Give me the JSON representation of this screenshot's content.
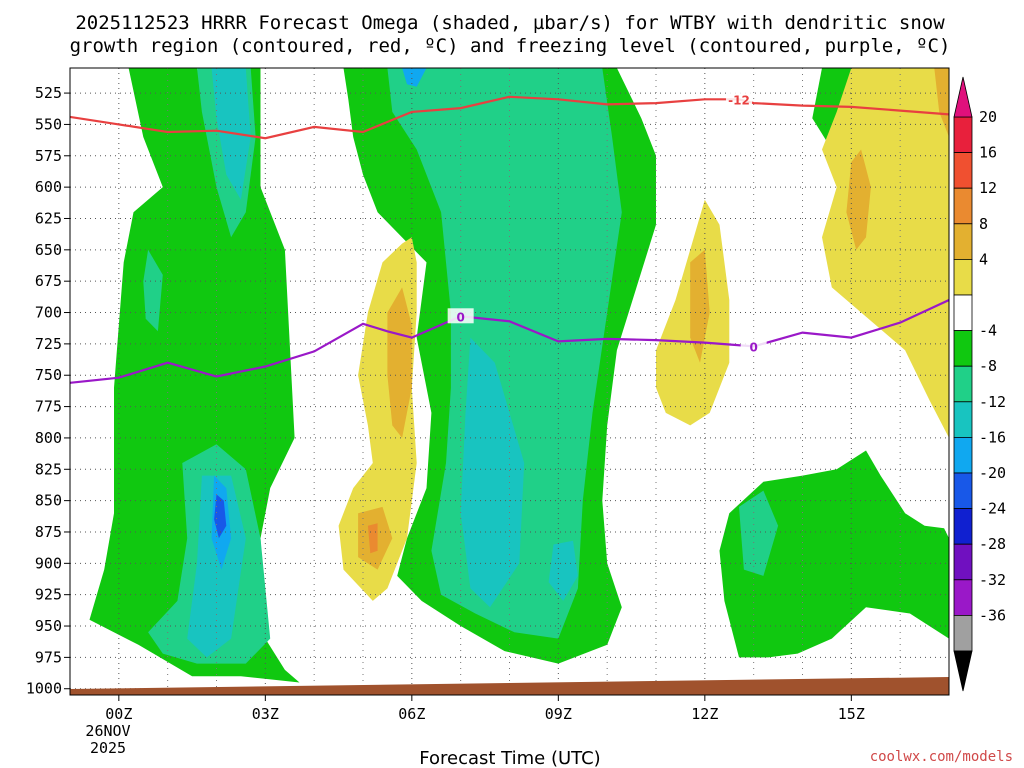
{
  "chart_data": {
    "type": "heatmap",
    "title_line1": "2025112523 HRRR Forecast Omega (shaded, µbar/s) for WTBY with dendritic snow",
    "title_line2": "growth region (contoured, red, ºC) and freezing level (contoured, purple, ºC)",
    "xlabel": "Forecast Time (UTC)",
    "credit": "coolwx.com/models",
    "x_tick_labels": [
      "00Z",
      "03Z",
      "06Z",
      "09Z",
      "12Z",
      "15Z"
    ],
    "x_tick_hours": [
      0,
      3,
      6,
      9,
      12,
      15
    ],
    "x_range_hours": [
      -1,
      17
    ],
    "date_label_line1": "26NOV",
    "date_label_line2": "2025",
    "y_tick_labels": [
      "525",
      "550",
      "575",
      "600",
      "625",
      "650",
      "675",
      "700",
      "725",
      "750",
      "775",
      "800",
      "825",
      "850",
      "875",
      "900",
      "925",
      "950",
      "975",
      "1000"
    ],
    "y_range_hPa": [
      505,
      1005
    ],
    "colorbar": {
      "labels": [
        "20",
        "16",
        "12",
        "8",
        "4",
        "-4",
        "-8",
        "-12",
        "-16",
        "-20",
        "-24",
        "-28",
        "-32",
        "-36"
      ],
      "colors": [
        "#e8203c",
        "#f05030",
        "#ea8a30",
        "#e3b030",
        "#e8dc48",
        "#ffffff",
        "#10c810",
        "#20d088",
        "#18c4c0",
        "#10a8f0",
        "#1858e8",
        "#1020d0",
        "#7010c0",
        "#9a18c8",
        "#a0a0a0"
      ],
      "top_arrow_color": "#e0107c",
      "bottom_arrow_color": "#000000"
    },
    "series": [
      {
        "name": "Dendritic snow growth region (-12 ºC)",
        "label": "-12",
        "color": "#e84040",
        "x_hours": [
          -1,
          0,
          1,
          2,
          3,
          4,
          5,
          6,
          7,
          8,
          9,
          10,
          11,
          12,
          12.7,
          13,
          14,
          15,
          16,
          17
        ],
        "pressure_hPa": [
          544,
          550,
          556,
          555,
          561,
          552,
          556,
          540,
          537,
          528,
          530,
          534,
          533,
          530,
          530,
          533,
          535,
          536,
          539,
          542
        ]
      },
      {
        "name": "Freezing level (0 ºC)",
        "label": "0",
        "color": "#9a18c8",
        "x_hours": [
          -1,
          0,
          1,
          2,
          3,
          4,
          5,
          5.5,
          6,
          7,
          8,
          9,
          10,
          11,
          12,
          13,
          14,
          15,
          16,
          17
        ],
        "pressure_hPa": [
          756,
          752,
          740,
          751,
          743,
          731,
          709,
          715,
          720,
          703,
          707,
          723,
          721,
          722,
          724,
          727,
          716,
          720,
          708,
          690
        ]
      }
    ],
    "omega_regions": [
      {
        "color": "#10c810",
        "desc": "-4 to -8 band, column 00Z-03Z, 500-990 hPa",
        "points": [
          [
            0.2,
            505
          ],
          [
            1.6,
            505
          ],
          [
            1.8,
            540
          ],
          [
            2.4,
            560
          ],
          [
            2.7,
            505
          ],
          [
            2.9,
            505
          ],
          [
            2.9,
            600
          ],
          [
            3.4,
            650
          ],
          [
            3.6,
            800
          ],
          [
            3.1,
            840
          ],
          [
            2.9,
            880
          ],
          [
            3.0,
            960
          ],
          [
            3.4,
            985
          ],
          [
            3.7,
            995
          ],
          [
            2.5,
            990
          ],
          [
            1.5,
            990
          ],
          [
            0.4,
            965
          ],
          [
            -0.6,
            945
          ],
          [
            -0.3,
            905
          ],
          [
            -0.1,
            860
          ],
          [
            -0.1,
            820
          ],
          [
            -0.1,
            760
          ],
          [
            0.1,
            660
          ],
          [
            0.3,
            620
          ],
          [
            0.9,
            600
          ],
          [
            0.5,
            560
          ]
        ]
      },
      {
        "color": "#10c810",
        "desc": "-4 to -8 band, column 04Z-11Z",
        "points": [
          [
            4.6,
            505
          ],
          [
            10.2,
            505
          ],
          [
            10.7,
            545
          ],
          [
            11.0,
            575
          ],
          [
            11.0,
            630
          ],
          [
            10.6,
            680
          ],
          [
            10.2,
            730
          ],
          [
            10.0,
            790
          ],
          [
            9.9,
            850
          ],
          [
            10.0,
            900
          ],
          [
            10.3,
            935
          ],
          [
            10.0,
            965
          ],
          [
            9.0,
            980
          ],
          [
            7.9,
            970
          ],
          [
            7.0,
            950
          ],
          [
            6.2,
            930
          ],
          [
            5.7,
            910
          ],
          [
            5.9,
            880
          ],
          [
            6.3,
            840
          ],
          [
            6.4,
            780
          ],
          [
            6.1,
            720
          ],
          [
            6.3,
            660
          ],
          [
            5.3,
            620
          ],
          [
            5.0,
            590
          ],
          [
            4.8,
            560
          ],
          [
            4.7,
            530
          ]
        ]
      },
      {
        "color": "#10c810",
        "desc": "-4 to -8 band, upper right",
        "points": [
          [
            14.4,
            505
          ],
          [
            16.4,
            505
          ],
          [
            16.0,
            535
          ],
          [
            15.4,
            560
          ],
          [
            14.6,
            570
          ],
          [
            14.2,
            545
          ]
        ]
      },
      {
        "color": "#10c810",
        "desc": "-4 to -8 band, lower right",
        "points": [
          [
            12.5,
            860
          ],
          [
            13.2,
            835
          ],
          [
            14.0,
            830
          ],
          [
            14.7,
            825
          ],
          [
            15.3,
            810
          ],
          [
            15.6,
            830
          ],
          [
            16.1,
            860
          ],
          [
            16.5,
            870
          ],
          [
            16.9,
            872
          ],
          [
            17,
            880
          ],
          [
            17,
            960
          ],
          [
            16.2,
            940
          ],
          [
            15.3,
            935
          ],
          [
            14.6,
            960
          ],
          [
            13.9,
            972
          ],
          [
            13.3,
            975
          ],
          [
            12.7,
            975
          ],
          [
            12.4,
            930
          ],
          [
            12.3,
            890
          ]
        ]
      },
      {
        "color": "#20d088",
        "desc": "-8 to -12 band, central column",
        "points": [
          [
            5.5,
            505
          ],
          [
            9.9,
            505
          ],
          [
            10.1,
            560
          ],
          [
            10.3,
            620
          ],
          [
            10.0,
            700
          ],
          [
            9.7,
            780
          ],
          [
            9.5,
            850
          ],
          [
            9.4,
            920
          ],
          [
            9.0,
            960
          ],
          [
            8.1,
            955
          ],
          [
            7.3,
            940
          ],
          [
            6.6,
            925
          ],
          [
            6.4,
            890
          ],
          [
            6.7,
            820
          ],
          [
            6.8,
            760
          ],
          [
            6.8,
            700
          ],
          [
            6.6,
            620
          ],
          [
            6.1,
            570
          ],
          [
            5.6,
            540
          ]
        ]
      },
      {
        "color": "#20d088",
        "desc": "-8 to -12 band, 00Z-03Z upper",
        "points": [
          [
            1.6,
            505
          ],
          [
            2.7,
            505
          ],
          [
            2.8,
            560
          ],
          [
            2.6,
            620
          ],
          [
            2.3,
            640
          ],
          [
            2.0,
            600
          ],
          [
            1.7,
            540
          ]
        ]
      },
      {
        "color": "#20d088",
        "desc": "-8 to -12 band, 01Z-03Z lower",
        "points": [
          [
            1.3,
            820
          ],
          [
            2.0,
            805
          ],
          [
            2.6,
            825
          ],
          [
            2.9,
            880
          ],
          [
            3.1,
            960
          ],
          [
            2.6,
            980
          ],
          [
            1.6,
            980
          ],
          [
            0.9,
            972
          ],
          [
            0.6,
            955
          ],
          [
            1.2,
            930
          ],
          [
            1.4,
            880
          ]
        ]
      },
      {
        "color": "#20d088",
        "desc": "-8 to -12 band, small left blob",
        "points": [
          [
            0.6,
            650
          ],
          [
            0.9,
            670
          ],
          [
            0.8,
            715
          ],
          [
            0.55,
            705
          ],
          [
            0.5,
            675
          ]
        ]
      },
      {
        "color": "#20d088",
        "desc": "-8 to -12 band, 13Z blob",
        "points": [
          [
            12.7,
            855
          ],
          [
            13.2,
            842
          ],
          [
            13.5,
            870
          ],
          [
            13.2,
            910
          ],
          [
            12.8,
            905
          ]
        ]
      },
      {
        "color": "#18c4c0",
        "desc": "-12 to -16 band, 01Z-03Z upper",
        "points": [
          [
            1.9,
            505
          ],
          [
            2.6,
            505
          ],
          [
            2.7,
            560
          ],
          [
            2.5,
            610
          ],
          [
            2.2,
            590
          ],
          [
            2.0,
            545
          ]
        ]
      },
      {
        "color": "#18c4c0",
        "desc": "-12 to -16 band, 07Z-09Z",
        "points": [
          [
            7.2,
            720
          ],
          [
            7.7,
            740
          ],
          [
            8.3,
            820
          ],
          [
            8.2,
            900
          ],
          [
            7.6,
            935
          ],
          [
            7.2,
            920
          ],
          [
            7.0,
            860
          ],
          [
            7.1,
            780
          ]
        ]
      },
      {
        "color": "#18c4c0",
        "desc": "-12 to -16 band, 00Z-03Z lower",
        "points": [
          [
            1.7,
            830
          ],
          [
            2.3,
            830
          ],
          [
            2.6,
            880
          ],
          [
            2.3,
            960
          ],
          [
            1.8,
            975
          ],
          [
            1.4,
            960
          ],
          [
            1.6,
            900
          ]
        ]
      },
      {
        "color": "#18c4c0",
        "desc": "-12 to -16 band, 09Z small",
        "points": [
          [
            8.9,
            885
          ],
          [
            9.3,
            882
          ],
          [
            9.4,
            910
          ],
          [
            9.1,
            930
          ],
          [
            8.8,
            915
          ]
        ]
      },
      {
        "color": "#10a8f0",
        "desc": "-16 to -20 band, 02Z",
        "points": [
          [
            1.95,
            830
          ],
          [
            2.2,
            840
          ],
          [
            2.3,
            880
          ],
          [
            2.1,
            905
          ],
          [
            1.9,
            880
          ]
        ]
      },
      {
        "color": "#10a8f0",
        "desc": "-16 to -20 band, top center",
        "points": [
          [
            5.8,
            505
          ],
          [
            6.3,
            505
          ],
          [
            6.1,
            520
          ],
          [
            5.9,
            518
          ]
        ]
      },
      {
        "color": "#1858e8",
        "desc": "-20 to -24 band, 02Z",
        "points": [
          [
            2.0,
            845
          ],
          [
            2.15,
            850
          ],
          [
            2.2,
            870
          ],
          [
            2.05,
            880
          ],
          [
            1.95,
            865
          ]
        ]
      },
      {
        "color": "#e8dc48",
        "desc": "4 to 8 band, 05Z-06Z",
        "points": [
          [
            5.1,
            700
          ],
          [
            5.4,
            660
          ],
          [
            5.8,
            645
          ],
          [
            6.0,
            640
          ],
          [
            6.1,
            660
          ],
          [
            6.1,
            700
          ],
          [
            6.0,
            760
          ],
          [
            6.1,
            820
          ],
          [
            5.9,
            880
          ],
          [
            5.5,
            920
          ],
          [
            5.2,
            930
          ],
          [
            4.6,
            905
          ],
          [
            4.5,
            870
          ],
          [
            4.8,
            840
          ],
          [
            5.2,
            820
          ],
          [
            5.1,
            790
          ],
          [
            4.9,
            750
          ]
        ]
      },
      {
        "color": "#e8dc48",
        "desc": "4 to 8 band, 11Z-12Z",
        "points": [
          [
            11.0,
            730
          ],
          [
            11.4,
            690
          ],
          [
            11.7,
            650
          ],
          [
            12.0,
            610
          ],
          [
            12.3,
            630
          ],
          [
            12.5,
            690
          ],
          [
            12.5,
            740
          ],
          [
            12.1,
            780
          ],
          [
            11.7,
            790
          ],
          [
            11.2,
            780
          ],
          [
            11.0,
            760
          ]
        ]
      },
      {
        "color": "#e8dc48",
        "desc": "4 to 8 band, upper right",
        "points": [
          [
            15.0,
            505
          ],
          [
            17,
            505
          ],
          [
            17,
            800
          ],
          [
            16.6,
            770
          ],
          [
            16.1,
            730
          ],
          [
            15.2,
            700
          ],
          [
            14.6,
            680
          ],
          [
            14.4,
            640
          ],
          [
            14.7,
            600
          ],
          [
            14.4,
            570
          ],
          [
            14.7,
            540
          ]
        ]
      },
      {
        "color": "#e3b030",
        "desc": "8 to 12 band, 05Z-06Z",
        "points": [
          [
            5.5,
            700
          ],
          [
            5.8,
            680
          ],
          [
            6.0,
            710
          ],
          [
            6.0,
            760
          ],
          [
            5.8,
            800
          ],
          [
            5.6,
            790
          ],
          [
            5.5,
            750
          ]
        ]
      },
      {
        "color": "#e3b030",
        "desc": "8 to 12 band, 05Z lower",
        "points": [
          [
            4.9,
            860
          ],
          [
            5.4,
            855
          ],
          [
            5.6,
            880
          ],
          [
            5.3,
            905
          ],
          [
            4.9,
            895
          ]
        ]
      },
      {
        "color": "#e3b030",
        "desc": "8 to 12 band, 12Z",
        "points": [
          [
            11.7,
            660
          ],
          [
            12.0,
            650
          ],
          [
            12.1,
            700
          ],
          [
            11.9,
            740
          ],
          [
            11.7,
            720
          ]
        ]
      },
      {
        "color": "#e3b030",
        "desc": "8 to 12 band, 15Z",
        "points": [
          [
            15.0,
            580
          ],
          [
            15.2,
            570
          ],
          [
            15.4,
            600
          ],
          [
            15.3,
            640
          ],
          [
            15.1,
            650
          ],
          [
            14.9,
            620
          ]
        ]
      },
      {
        "color": "#e3b030",
        "desc": "8 to 12 band, right edge",
        "points": [
          [
            16.7,
            505
          ],
          [
            17,
            505
          ],
          [
            17,
            560
          ],
          [
            16.8,
            540
          ]
        ]
      },
      {
        "color": "#ea8a30",
        "desc": "12 to 16 band, 05Z",
        "points": [
          [
            5.1,
            870
          ],
          [
            5.3,
            868
          ],
          [
            5.3,
            890
          ],
          [
            5.15,
            892
          ]
        ]
      }
    ]
  }
}
